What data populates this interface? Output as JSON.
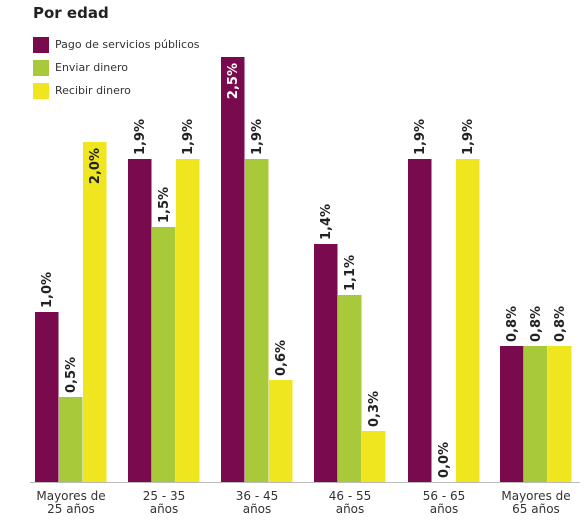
{
  "chart_data": {
    "type": "bar",
    "title": "Por edad",
    "categories": [
      [
        "Mayores de",
        "25 años"
      ],
      [
        "25 - 35",
        "años"
      ],
      [
        "36 - 45",
        "años"
      ],
      [
        "46 - 55",
        "años"
      ],
      [
        "56 - 65",
        "años"
      ],
      [
        "Mayores de",
        "65 años"
      ]
    ],
    "series": [
      {
        "name": "Pago de servicios públicos",
        "color": "#7a0a4e",
        "values": [
          1.0,
          1.9,
          2.5,
          1.4,
          1.9,
          0.8
        ],
        "labels": [
          "1,0%",
          "1,9%",
          "2,5%",
          "1,4%",
          "1,9%",
          "0,8%"
        ]
      },
      {
        "name": "Enviar dinero",
        "color": "#a8c93a",
        "values": [
          0.5,
          1.5,
          1.9,
          1.1,
          0.0,
          0.8
        ],
        "labels": [
          "0,5%",
          "1,5%",
          "1,9%",
          "1,1%",
          "0,0%",
          "0,8%"
        ]
      },
      {
        "name": "Recibir dinero",
        "color": "#f0e620",
        "values": [
          2.0,
          1.9,
          0.6,
          0.3,
          1.9,
          0.8
        ],
        "labels": [
          "2,0%",
          "1,9%",
          "0,6%",
          "0,3%",
          "1,9%",
          "0,8%"
        ]
      }
    ],
    "ylim": [
      0,
      2.5
    ],
    "legend_position": "top-left",
    "grid": false
  }
}
